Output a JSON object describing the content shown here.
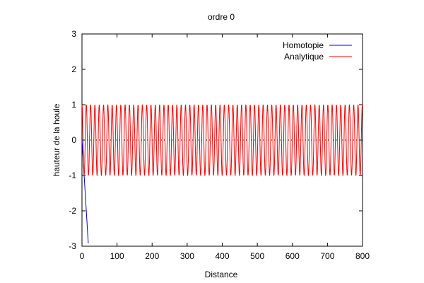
{
  "chart_data": {
    "type": "line",
    "title": "ordre 0",
    "xlabel": "Distance",
    "ylabel": "hauteur de la houle",
    "xlim": [
      0,
      800
    ],
    "ylim": [
      -3,
      3
    ],
    "xticks": [
      0,
      100,
      200,
      300,
      400,
      500,
      600,
      700,
      800
    ],
    "yticks": [
      -3,
      -2,
      -1,
      0,
      1,
      2,
      3
    ],
    "grid": false,
    "zero_line": "dotted",
    "legend_position": "top-right",
    "series": [
      {
        "name": "Homotopie",
        "color": "#0000cc",
        "kind": "points",
        "x": [
          0,
          18
        ],
        "y": [
          0,
          -2.92
        ]
      },
      {
        "name": "Analytique",
        "color": "#ff0000",
        "kind": "cosine",
        "amplitude": 1,
        "wavelength": 12.3,
        "x_start": 0,
        "x_end": 800
      }
    ]
  }
}
